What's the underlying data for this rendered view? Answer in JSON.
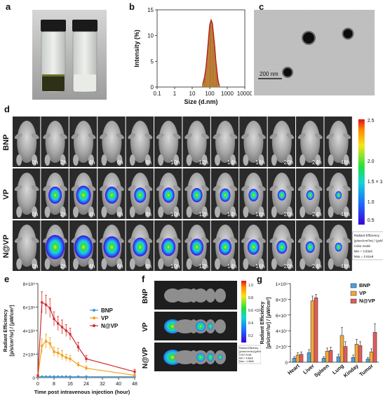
{
  "panel_labels": {
    "a": "a",
    "b": "b",
    "c": "c",
    "d": "d",
    "e": "e",
    "f": "f",
    "g": "g"
  },
  "panel_c": {
    "scale_bar": "200 nm"
  },
  "panel_d": {
    "rows": [
      "BNP",
      "VP",
      "N@VP"
    ],
    "timepoints": [
      "0h",
      "2h",
      "4h",
      "6h",
      "8h",
      "10h",
      "12h",
      "14h",
      "16h",
      "20h",
      "24h",
      "48h"
    ],
    "intensity": [
      [
        0,
        0,
        0,
        0,
        0,
        0,
        0,
        0,
        0,
        0,
        0,
        0
      ],
      [
        0,
        0.55,
        0.65,
        0.55,
        0.45,
        0.45,
        0.4,
        0.35,
        0.3,
        0.2,
        0.15,
        0.05
      ],
      [
        0,
        0.95,
        0.9,
        0.8,
        0.65,
        0.6,
        0.55,
        0.5,
        0.45,
        0.35,
        0.25,
        0.1
      ]
    ],
    "colorbar": {
      "ticks": [
        "2.5",
        "2.0",
        "1.5 × 10⁸",
        "1.0",
        "0.5"
      ],
      "legend_lines": [
        "Radiant Efficiency",
        "(p/sec/cm²/sr) / (µW/cm²)",
        "Color Scale",
        "Min = 3.83e6",
        "Max = 2.61e8"
      ]
    }
  },
  "panel_f": {
    "rows": [
      "BNP",
      "VP",
      "N@VP"
    ],
    "colorbar_ticks": [
      "1.0",
      "0.8",
      "0.6 ×10⁸",
      "0.4",
      "0.2"
    ],
    "legend_lines": [
      "Radiant Efficiency",
      "(p/sec/cm²/sr)/(µW/cm²)",
      "Color Scale",
      "Min = 4.68e6",
      "Max = 1.58e8"
    ]
  },
  "chart_data": [
    {
      "type": "bar",
      "panel": "b",
      "xlabel": "Size (d.nm)",
      "ylabel": "Intensity (%)",
      "x_scale": "log",
      "xlim": [
        0.1,
        10000
      ],
      "ylim": [
        0,
        15
      ],
      "xticks": [
        "0.1",
        "1",
        "10",
        "100",
        "1000",
        "10000"
      ],
      "yticks": [
        "0",
        "5",
        "10",
        "15"
      ],
      "x": [
        40,
        50,
        60,
        70,
        80,
        90,
        100,
        120,
        140,
        160,
        190,
        220,
        260,
        300,
        350
      ],
      "values": [
        0.6,
        1.8,
        3.6,
        5.8,
        8.2,
        10.4,
        12.1,
        13.0,
        12.4,
        10.6,
        8.0,
        5.2,
        2.9,
        1.2,
        0.3
      ],
      "colors": {
        "fill": "#b5752a",
        "outline": "#b51f1f"
      }
    },
    {
      "type": "line",
      "panel": "e",
      "xlabel": "Time post intravenous injection (hour)",
      "ylabel_lines": [
        "Radiant Efficiency",
        "[p/s/cm²/sr] / [µW/cm²]"
      ],
      "x": [
        0,
        2,
        4,
        6,
        8,
        10,
        12,
        14,
        16,
        20,
        24,
        48
      ],
      "xticks": [
        "0",
        "8",
        "16",
        "24",
        "32",
        "40",
        "48"
      ],
      "yticks": [
        "0",
        "2×10⁸",
        "4×10⁸",
        "6×10⁸",
        "8×10⁸"
      ],
      "ylim": [
        0,
        8
      ],
      "y_unit": "×10⁸",
      "series": [
        {
          "name": "BNP",
          "color": "#3a9ad9",
          "values": [
            0.05,
            0.08,
            0.08,
            0.08,
            0.08,
            0.08,
            0.08,
            0.08,
            0.08,
            0.08,
            0.08,
            0.08
          ],
          "errors": [
            0.05,
            0.05,
            0.05,
            0.05,
            0.05,
            0.05,
            0.05,
            0.05,
            0.05,
            0.05,
            0.05,
            0.05
          ]
        },
        {
          "name": "VP",
          "color": "#f0a21a",
          "values": [
            0.1,
            2.7,
            3.1,
            2.9,
            2.2,
            2.1,
            1.9,
            1.7,
            1.6,
            1.1,
            0.8,
            0.2
          ],
          "errors": [
            0.1,
            0.6,
            0.6,
            0.5,
            0.4,
            0.4,
            0.4,
            0.3,
            0.3,
            0.2,
            0.2,
            0.1
          ]
        },
        {
          "name": "N@VP",
          "color": "#d42a2a",
          "values": [
            0.15,
            6.4,
            6.2,
            5.9,
            5.0,
            4.6,
            4.3,
            4.0,
            3.7,
            2.6,
            1.6,
            0.5
          ],
          "errors": [
            0.1,
            0.9,
            0.8,
            0.8,
            0.6,
            0.6,
            0.6,
            0.5,
            0.5,
            0.4,
            0.3,
            0.2
          ]
        }
      ]
    },
    {
      "type": "bar",
      "panel": "g",
      "ylabel_lines": [
        "Radiant Efficiency",
        "[p/s/cm²/sr] / [µW/cm²]"
      ],
      "categories": [
        "Heart",
        "Liver",
        "Spleen",
        "Lung",
        "Kinday",
        "Tumor"
      ],
      "yticks": [
        "0",
        "2×10⁷",
        "4×10⁷",
        "6×10⁷",
        "8×10⁷",
        "1×10⁸"
      ],
      "ylim": [
        0,
        10
      ],
      "y_unit": "×10⁷",
      "series": [
        {
          "name": "BNP",
          "color": "#4aa3df",
          "values": [
            0.5,
            1.2,
            0.5,
            0.7,
            0.6,
            0.4
          ],
          "errors": [
            0.2,
            0.4,
            0.2,
            0.3,
            0.3,
            0.2
          ]
        },
        {
          "name": "VP",
          "color": "#f2a93b",
          "values": [
            0.9,
            7.8,
            1.4,
            3.4,
            2.3,
            1.3
          ],
          "errors": [
            0.3,
            0.6,
            0.4,
            1.0,
            0.6,
            0.4
          ]
        },
        {
          "name": "N@VP",
          "color": "#e35c5c",
          "values": [
            1.0,
            8.2,
            1.5,
            2.0,
            2.1,
            3.8
          ],
          "errors": [
            0.3,
            0.4,
            0.4,
            0.6,
            0.5,
            1.1
          ]
        }
      ]
    }
  ]
}
